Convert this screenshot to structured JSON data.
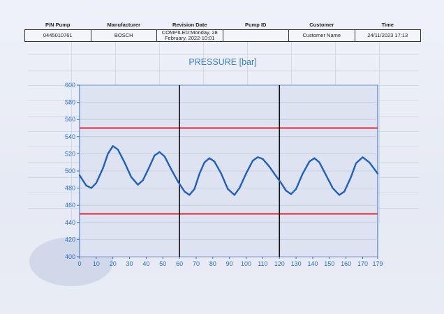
{
  "header": {
    "columns": [
      "P/N Pump",
      "Manufacturer",
      "Revision Date",
      "Pump ID",
      "Customer",
      "Time"
    ],
    "values": [
      "0445010761",
      "BOSCH",
      "COMPILED:Monday, 28 February, 2022-10:01",
      "",
      "Customer Name",
      "24/11/2023 17:13"
    ]
  },
  "colors": {
    "line": "#1f5fbf",
    "limit": "#e02a3a",
    "marker": "#111111",
    "title": "#3a7fd6",
    "axis": "#2b6fd0"
  },
  "chart_data": {
    "type": "line",
    "title": "PRESSURE [bar]",
    "xlabel": "",
    "ylabel": "",
    "xlim": [
      0,
      179
    ],
    "ylim": [
      400,
      600
    ],
    "x_ticks": [
      0,
      10,
      20,
      30,
      40,
      50,
      60,
      70,
      80,
      90,
      100,
      110,
      120,
      130,
      140,
      150,
      160,
      170,
      179
    ],
    "y_ticks": [
      400,
      420,
      440,
      460,
      480,
      500,
      520,
      540,
      560,
      580,
      600
    ],
    "limits": [
      {
        "y": 550
      },
      {
        "y": 450
      }
    ],
    "markers": [
      {
        "x": 60
      },
      {
        "x": 120
      }
    ],
    "grid": true,
    "series": [
      {
        "points": [
          [
            0,
            495
          ],
          [
            4,
            483
          ],
          [
            7,
            480
          ],
          [
            10,
            486
          ],
          [
            14,
            503
          ],
          [
            17,
            520
          ],
          [
            20,
            529
          ],
          [
            23,
            525
          ],
          [
            27,
            510
          ],
          [
            31,
            493
          ],
          [
            35,
            484
          ],
          [
            38,
            489
          ],
          [
            42,
            505
          ],
          [
            45,
            518
          ],
          [
            48,
            522
          ],
          [
            51,
            517
          ],
          [
            55,
            502
          ],
          [
            59,
            488
          ],
          [
            63,
            476
          ],
          [
            66,
            472
          ],
          [
            69,
            479
          ],
          [
            72,
            497
          ],
          [
            75,
            510
          ],
          [
            78,
            515
          ],
          [
            81,
            511
          ],
          [
            85,
            497
          ],
          [
            89,
            479
          ],
          [
            93,
            472
          ],
          [
            96,
            480
          ],
          [
            100,
            497
          ],
          [
            104,
            512
          ],
          [
            107,
            516
          ],
          [
            110,
            514
          ],
          [
            114,
            505
          ],
          [
            118,
            494
          ],
          [
            121,
            486
          ],
          [
            124,
            477
          ],
          [
            127,
            473
          ],
          [
            130,
            479
          ],
          [
            134,
            497
          ],
          [
            138,
            511
          ],
          [
            141,
            515
          ],
          [
            144,
            510
          ],
          [
            148,
            495
          ],
          [
            152,
            480
          ],
          [
            156,
            472
          ],
          [
            159,
            476
          ],
          [
            163,
            493
          ],
          [
            166,
            509
          ],
          [
            170,
            516
          ],
          [
            174,
            510
          ],
          [
            179,
            497
          ]
        ]
      }
    ]
  }
}
